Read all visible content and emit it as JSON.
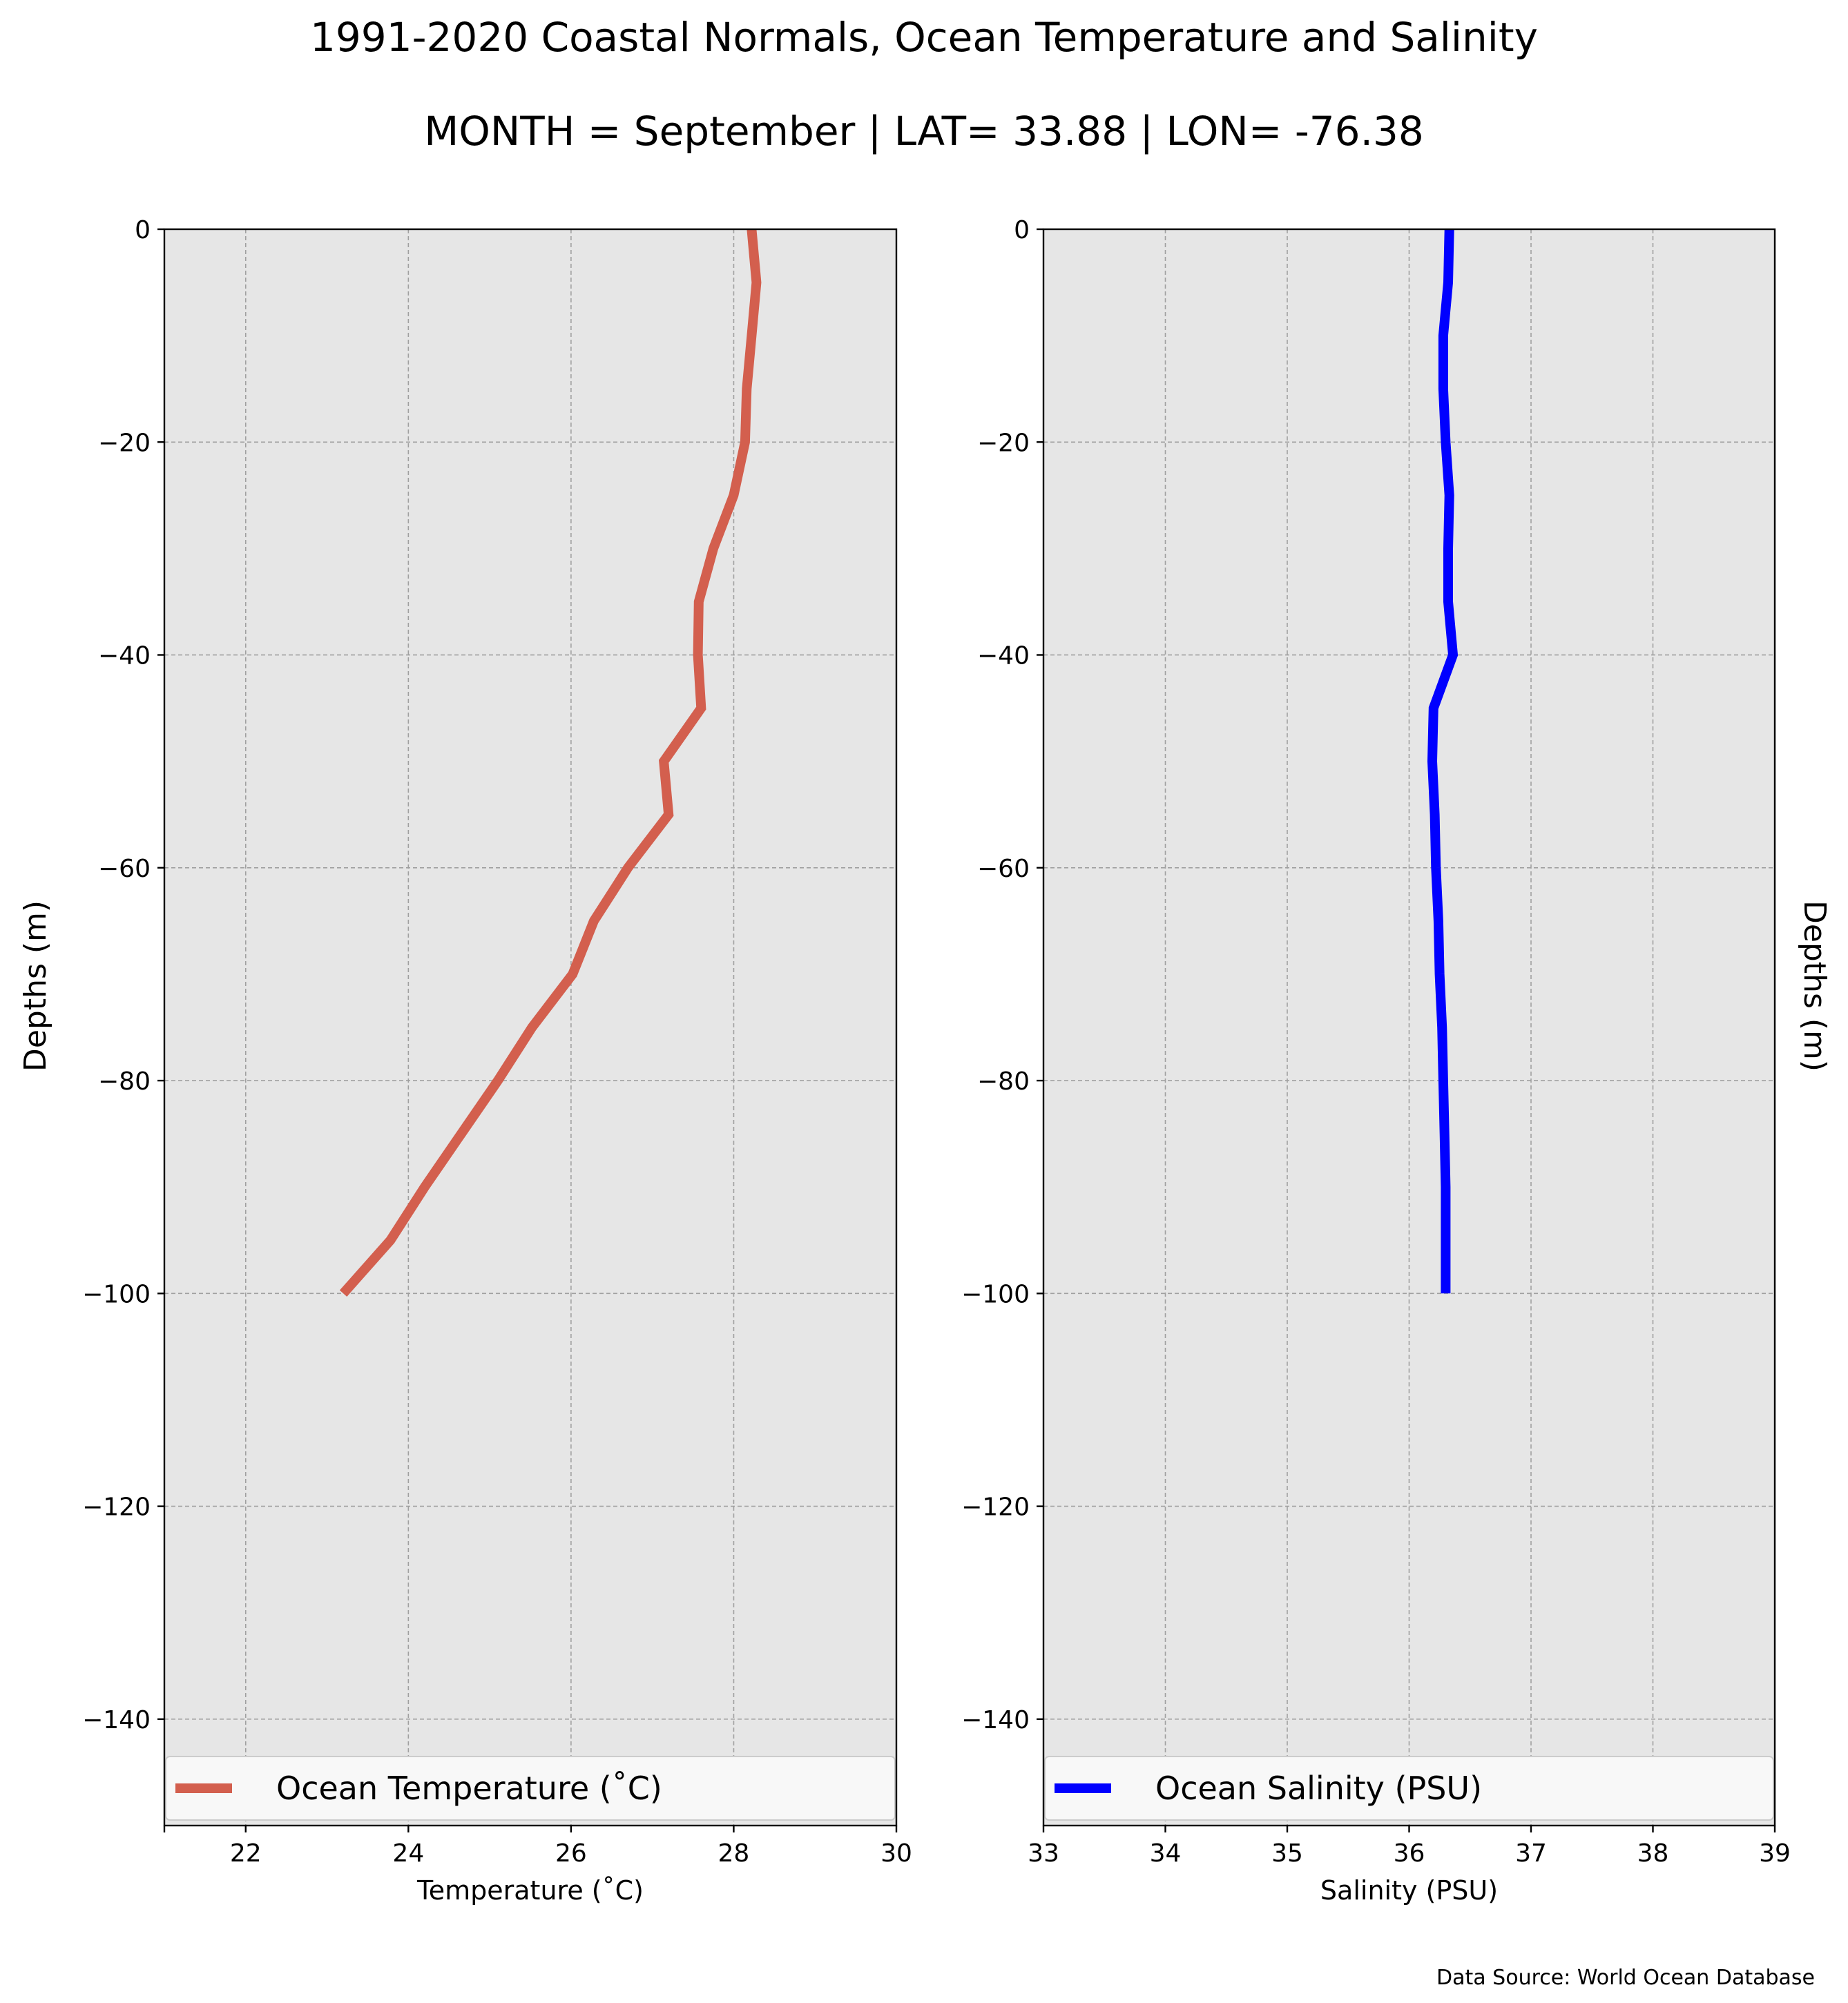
{
  "figure": {
    "title": "1991-2020 Coastal Normals, Ocean Temperature and Salinity",
    "subtitle": "MONTH = September | LAT= 33.88 | LON= -76.38",
    "source": "Data Source: World Ocean Database",
    "y_label_left": "Depths (m)",
    "y_label_right": "Depths (m)"
  },
  "chart_data": [
    {
      "type": "line",
      "xlabel": "Temperature ($^\\circ$C)",
      "xlabel_display": "Temperature (˚C)",
      "ylabel": "Depths (m)",
      "xlim": [
        21,
        30
      ],
      "ylim": [
        -150,
        0
      ],
      "x_ticks": [
        22,
        24,
        26,
        28,
        30
      ],
      "y_ticks": [
        0,
        -20,
        -40,
        -60,
        -80,
        -100,
        -120,
        -140
      ],
      "y_tick_labels": [
        "0",
        "−20",
        "−40",
        "−60",
        "−80",
        "−100",
        "−120",
        "−140"
      ],
      "grid": true,
      "legend_position": "bottom",
      "series": [
        {
          "name": "Ocean Temperature (˚C)",
          "color": "#d35f4e",
          "x": [
            28.22,
            28.28,
            28.22,
            28.16,
            28.14,
            28.0,
            27.75,
            27.57,
            27.56,
            27.6,
            27.14,
            27.2,
            26.7,
            26.28,
            26.02,
            25.52,
            25.1,
            24.65,
            24.2,
            23.78,
            23.2
          ],
          "y": [
            0,
            -5,
            -10,
            -15,
            -20,
            -25,
            -30,
            -35,
            -40,
            -45,
            -50,
            -55,
            -60,
            -65,
            -70,
            -75,
            -80,
            -85,
            -90,
            -95,
            -100
          ]
        }
      ]
    },
    {
      "type": "line",
      "xlabel": "Salinity (PSU)",
      "xlim": [
        33,
        39
      ],
      "ylim": [
        -150,
        0
      ],
      "x_ticks": [
        33,
        34,
        35,
        36,
        37,
        38,
        39
      ],
      "y_ticks": [
        0,
        -20,
        -40,
        -60,
        -80,
        -100,
        -120,
        -140
      ],
      "y_tick_labels": [
        "0",
        "−20",
        "−40",
        "−60",
        "−80",
        "−100",
        "−120",
        "−140"
      ],
      "grid": true,
      "legend_position": "bottom",
      "series": [
        {
          "name": "Ocean Salinity (PSU)",
          "color": "#0000ff",
          "x": [
            36.33,
            36.32,
            36.28,
            36.28,
            36.3,
            36.33,
            36.32,
            36.32,
            36.36,
            36.2,
            36.19,
            36.21,
            36.22,
            36.24,
            36.25,
            36.27,
            36.28,
            36.29,
            36.3,
            36.3,
            36.3
          ],
          "y": [
            0,
            -5,
            -10,
            -15,
            -20,
            -25,
            -30,
            -35,
            -40,
            -45,
            -50,
            -55,
            -60,
            -65,
            -70,
            -75,
            -80,
            -85,
            -90,
            -95,
            -100
          ]
        }
      ]
    }
  ],
  "colors": {
    "plot_background": "#e6e6e6",
    "grid": "#a0a0a0",
    "legend_background": "#f8f8f8"
  }
}
